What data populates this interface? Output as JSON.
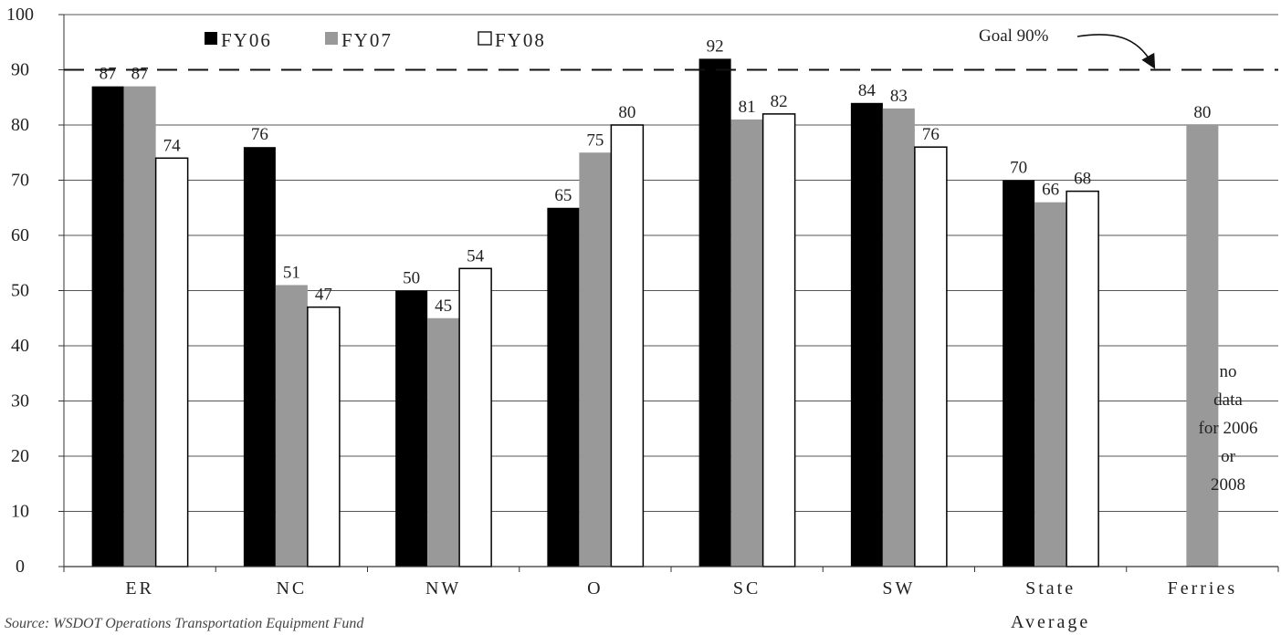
{
  "chart_data": {
    "type": "bar",
    "categories": [
      "ER",
      "NC",
      "NW",
      "O",
      "SC",
      "SW",
      "State Average",
      "Ferries"
    ],
    "series": [
      {
        "name": "FY06",
        "color": "#000000",
        "values": [
          87,
          76,
          50,
          65,
          92,
          84,
          70,
          null
        ]
      },
      {
        "name": "FY07",
        "color": "#999999",
        "values": [
          87,
          51,
          45,
          75,
          81,
          83,
          66,
          80
        ]
      },
      {
        "name": "FY08",
        "color": "#ffffff",
        "values": [
          74,
          47,
          54,
          80,
          82,
          76,
          68,
          null
        ]
      }
    ],
    "ylim": [
      0,
      100
    ],
    "yticks": [
      0,
      10,
      20,
      30,
      40,
      50,
      60,
      70,
      80,
      90,
      100
    ],
    "grid": true,
    "legend_position": "top-left",
    "goal": {
      "value": 90,
      "label": "Goal 90%"
    },
    "annotation": [
      "no",
      "data",
      "for 2006",
      "or",
      "2008"
    ],
    "source": "Source: WSDOT Operations Transportation Equipment Fund"
  }
}
